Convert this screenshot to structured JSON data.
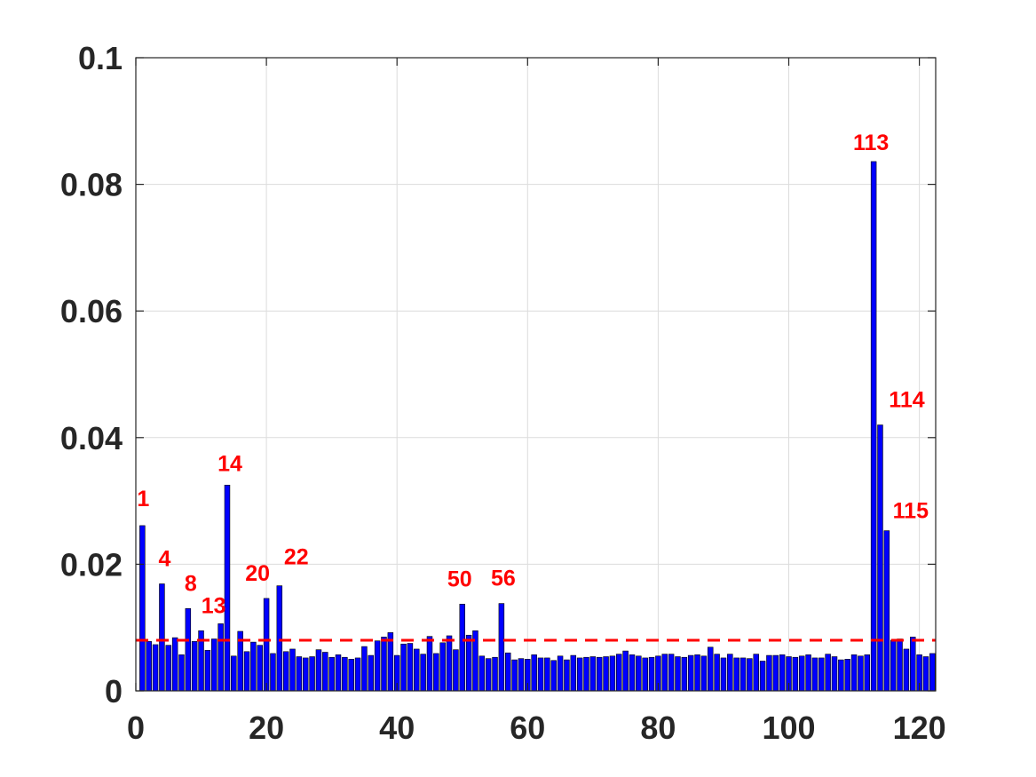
{
  "chart_data": {
    "type": "bar",
    "title": "",
    "xlabel": "",
    "ylabel": "",
    "xlim": [
      0,
      122.5
    ],
    "ylim": [
      0,
      0.1
    ],
    "grid": true,
    "x_ticks": [
      0,
      20,
      40,
      60,
      80,
      100,
      120
    ],
    "x_tick_labels": [
      "0",
      "20",
      "40",
      "60",
      "80",
      "100",
      "120"
    ],
    "y_ticks": [
      0,
      0.02,
      0.04,
      0.06,
      0.08,
      0.1
    ],
    "y_tick_labels": [
      "0",
      "0.02",
      "0.04",
      "0.06",
      "0.08",
      "0.1"
    ],
    "bar_color": "#0000ff",
    "threshold": {
      "value": 0.008,
      "color": "#ff0000",
      "style": "dashed"
    },
    "x": [
      1,
      2,
      3,
      4,
      5,
      6,
      7,
      8,
      9,
      10,
      11,
      12,
      13,
      14,
      15,
      16,
      17,
      18,
      19,
      20,
      21,
      22,
      23,
      24,
      25,
      26,
      27,
      28,
      29,
      30,
      31,
      32,
      33,
      34,
      35,
      36,
      37,
      38,
      39,
      40,
      41,
      42,
      43,
      44,
      45,
      46,
      47,
      48,
      49,
      50,
      51,
      52,
      53,
      54,
      55,
      56,
      57,
      58,
      59,
      60,
      61,
      62,
      63,
      64,
      65,
      66,
      67,
      68,
      69,
      70,
      71,
      72,
      73,
      74,
      75,
      76,
      77,
      78,
      79,
      80,
      81,
      82,
      83,
      84,
      85,
      86,
      87,
      88,
      89,
      90,
      91,
      92,
      93,
      94,
      95,
      96,
      97,
      98,
      99,
      100,
      101,
      102,
      103,
      104,
      105,
      106,
      107,
      108,
      109,
      110,
      111,
      112,
      113,
      114,
      115,
      116,
      117,
      118,
      119,
      120,
      121,
      122
    ],
    "values": [
      0.0261,
      0.0078,
      0.0073,
      0.0169,
      0.0072,
      0.0084,
      0.0057,
      0.013,
      0.0078,
      0.0095,
      0.0064,
      0.0082,
      0.0106,
      0.0325,
      0.0055,
      0.0094,
      0.0062,
      0.0077,
      0.0072,
      0.0146,
      0.0059,
      0.0166,
      0.0062,
      0.0066,
      0.0054,
      0.0052,
      0.0054,
      0.0065,
      0.0061,
      0.0053,
      0.0057,
      0.0053,
      0.005,
      0.0052,
      0.007,
      0.0056,
      0.0079,
      0.0085,
      0.0092,
      0.0056,
      0.0074,
      0.0075,
      0.0066,
      0.0058,
      0.0086,
      0.0059,
      0.0076,
      0.0087,
      0.0065,
      0.0137,
      0.0088,
      0.0095,
      0.0055,
      0.0051,
      0.0053,
      0.0138,
      0.006,
      0.0049,
      0.0051,
      0.005,
      0.0057,
      0.0052,
      0.0052,
      0.0048,
      0.0055,
      0.0049,
      0.0056,
      0.0052,
      0.0053,
      0.0054,
      0.0053,
      0.0054,
      0.0055,
      0.0058,
      0.0063,
      0.0057,
      0.0055,
      0.0052,
      0.0053,
      0.0055,
      0.0058,
      0.0058,
      0.0054,
      0.0053,
      0.0056,
      0.0057,
      0.0055,
      0.0069,
      0.0058,
      0.0052,
      0.0058,
      0.0052,
      0.0052,
      0.0051,
      0.0058,
      0.0047,
      0.0056,
      0.0056,
      0.0057,
      0.0054,
      0.0053,
      0.0055,
      0.0057,
      0.0052,
      0.0052,
      0.0058,
      0.0054,
      0.0049,
      0.005,
      0.0057,
      0.0055,
      0.0057,
      0.0836,
      0.042,
      0.0253,
      0.008,
      0.0082,
      0.0066,
      0.0085,
      0.0057,
      0.0054,
      0.0059
    ],
    "annotations": [
      {
        "x": 1,
        "text": "1"
      },
      {
        "x": 4,
        "text": "4"
      },
      {
        "x": 8,
        "text": "8"
      },
      {
        "x": 13,
        "text": "13"
      },
      {
        "x": 14,
        "text": "14"
      },
      {
        "x": 20,
        "text": "20"
      },
      {
        "x": 22,
        "text": "22"
      },
      {
        "x": 50,
        "text": "50"
      },
      {
        "x": 56,
        "text": "56"
      },
      {
        "x": 113,
        "text": "113"
      },
      {
        "x": 114,
        "text": "114"
      },
      {
        "x": 115,
        "text": "115"
      }
    ]
  }
}
